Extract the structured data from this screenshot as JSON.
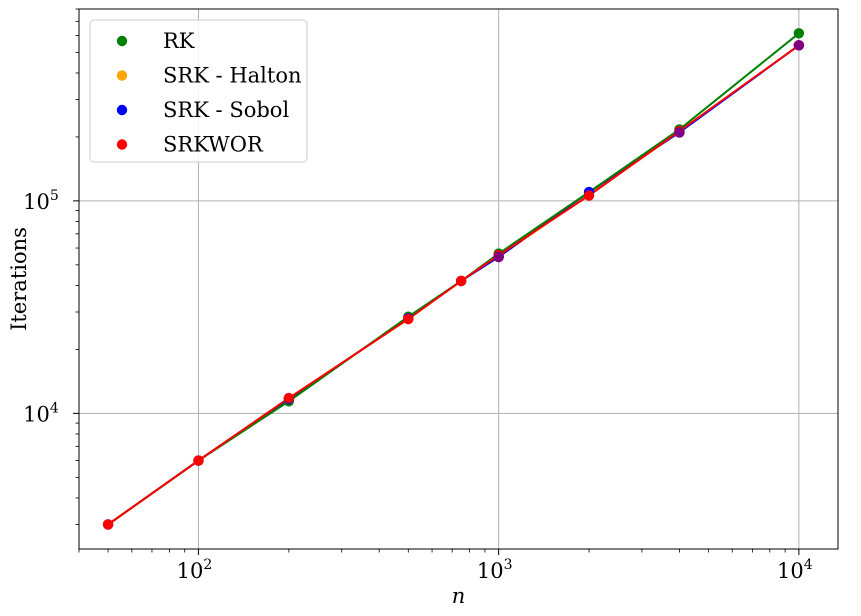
{
  "chart_data": {
    "type": "scatter",
    "title": "",
    "xlabel": "n",
    "ylabel": "Iterations",
    "xscale": "log",
    "yscale": "log",
    "xlim": [
      40,
      13500
    ],
    "ylim": [
      2300,
      800000
    ],
    "grid": true,
    "legend_position": "top-left",
    "x_ticks": [
      {
        "base": "10",
        "exp": "2",
        "value": 100
      },
      {
        "base": "10",
        "exp": "3",
        "value": 1000
      },
      {
        "base": "10",
        "exp": "4",
        "value": 10000
      }
    ],
    "y_ticks": [
      {
        "base": "10",
        "exp": "4",
        "value": 10000
      },
      {
        "base": "10",
        "exp": "5",
        "value": 100000
      }
    ],
    "series": [
      {
        "name": "RK",
        "color": "#008000",
        "line_color": "#008000",
        "x": [
          50,
          100,
          200,
          500,
          750,
          1000,
          2000,
          4000,
          10000
        ],
        "y": [
          3000,
          6000,
          11400,
          28500,
          42000,
          56500,
          110000,
          217000,
          615000
        ]
      },
      {
        "name": "SRK - Halton",
        "color": "#ffa500",
        "line_color": "#ffa500",
        "x": [
          50,
          100,
          200,
          500,
          750,
          1000,
          2000,
          4000,
          10000
        ],
        "y": [
          3000,
          6000,
          11700,
          28000,
          42000,
          54500,
          108000,
          211000,
          540000
        ]
      },
      {
        "name": "SRK - Sobol",
        "color": "#0000ff",
        "line_color": "#0000ff",
        "x": [
          50,
          100,
          200,
          500,
          750,
          1000,
          2000,
          4000,
          10000
        ],
        "y": [
          3000,
          6000,
          11700,
          28000,
          42000,
          54500,
          110000,
          210000,
          540000
        ]
      },
      {
        "name": "SRKWOR",
        "color": "#ff0000",
        "line_color": "#ff0000",
        "x": [
          50,
          100,
          200,
          500,
          750,
          1000,
          2000,
          4000,
          10000
        ],
        "y": [
          3000,
          6000,
          11800,
          27800,
          42000,
          55500,
          106000,
          213000,
          540000
        ]
      }
    ],
    "line_series_order": [
      "SRK - Halton",
      "SRK - Sobol",
      "RK",
      "SRKWOR"
    ],
    "legend_order": [
      "RK",
      "SRK - Halton",
      "SRK - Sobol",
      "SRKWOR"
    ],
    "extra_marks": [
      {
        "x": 1000,
        "y": 54500,
        "color": "#800080"
      },
      {
        "x": 4000,
        "y": 210000,
        "color": "#800080"
      },
      {
        "x": 10000,
        "y": 540000,
        "color": "#800080"
      }
    ]
  }
}
